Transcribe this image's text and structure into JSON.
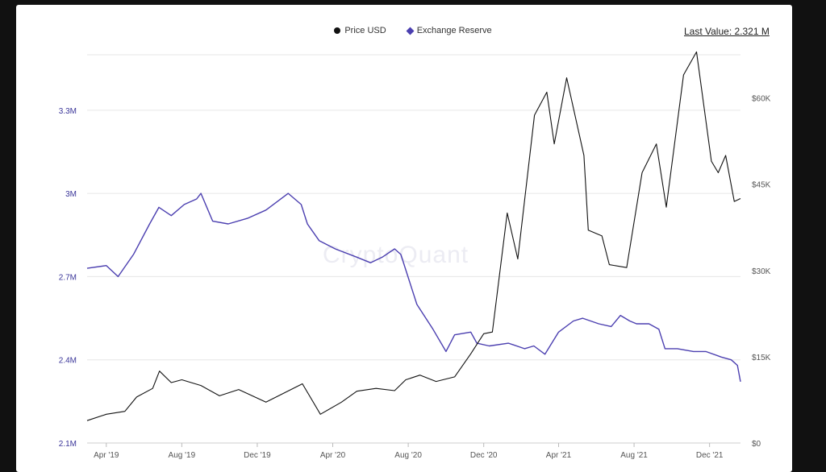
{
  "legend": {
    "price_label": "Price USD",
    "reserve_label": "Exchange Reserve"
  },
  "last_value": "Last Value: 2.321 M",
  "watermark": "CryptoQuant",
  "colors": {
    "price": "#111111",
    "reserve": "#4b3fb0",
    "left_axis_text": "#3a3599",
    "right_axis_text": "#555555",
    "grid": "#e6e6e6"
  },
  "chart_data": {
    "type": "line",
    "title": "",
    "x_tick_labels": [
      "Apr '19",
      "Aug '19",
      "Dec '19",
      "Apr '20",
      "Aug '20",
      "Dec '20",
      "Apr '21",
      "Aug '21",
      "Dec '21"
    ],
    "x_tick_dates": [
      "2019-04-01",
      "2019-08-01",
      "2019-12-01",
      "2020-04-01",
      "2020-08-01",
      "2020-12-01",
      "2021-04-01",
      "2021-08-01",
      "2021-12-01"
    ],
    "x_range": [
      "2019-03-01",
      "2022-01-20"
    ],
    "y_left": {
      "range": [
        2100000,
        3500000
      ],
      "ticks": [
        2100000,
        2400000,
        2700000,
        3000000,
        3300000
      ],
      "tick_labels": [
        "2.1M",
        "2.4M",
        "2.7M",
        "3M",
        "3.3M"
      ]
    },
    "y_right": {
      "range": [
        0,
        67500
      ],
      "ticks": [
        0,
        15000,
        30000,
        45000,
        60000
      ],
      "tick_labels": [
        "$0",
        "$15K",
        "$30K",
        "$45K",
        "$60K"
      ]
    },
    "grid": true,
    "legend_position": "top-center",
    "series": [
      {
        "name": "Exchange Reserve",
        "axis": "left",
        "x": [
          "2019-03-01",
          "2019-04-01",
          "2019-04-20",
          "2019-05-15",
          "2019-06-10",
          "2019-06-25",
          "2019-07-15",
          "2019-08-05",
          "2019-08-25",
          "2019-09-01",
          "2019-09-20",
          "2019-10-15",
          "2019-11-15",
          "2019-12-15",
          "2020-01-20",
          "2020-02-10",
          "2020-02-20",
          "2020-03-10",
          "2020-04-05",
          "2020-05-10",
          "2020-06-01",
          "2020-06-20",
          "2020-07-10",
          "2020-07-20",
          "2020-08-15",
          "2020-09-10",
          "2020-10-01",
          "2020-10-15",
          "2020-11-10",
          "2020-11-20",
          "2020-12-10",
          "2021-01-10",
          "2021-02-05",
          "2021-02-20",
          "2021-03-10",
          "2021-04-01",
          "2021-04-25",
          "2021-05-10",
          "2021-06-05",
          "2021-06-25",
          "2021-07-10",
          "2021-07-25",
          "2021-08-05",
          "2021-08-25",
          "2021-09-10",
          "2021-09-20",
          "2021-10-10",
          "2021-11-05",
          "2021-11-25",
          "2021-12-20",
          "2022-01-05",
          "2022-01-15",
          "2022-01-20"
        ],
        "values": [
          2730000,
          2740000,
          2700000,
          2780000,
          2890000,
          2950000,
          2920000,
          2960000,
          2980000,
          3000000,
          2900000,
          2890000,
          2910000,
          2940000,
          3000000,
          2960000,
          2890000,
          2830000,
          2800000,
          2770000,
          2750000,
          2770000,
          2800000,
          2780000,
          2600000,
          2510000,
          2430000,
          2490000,
          2500000,
          2460000,
          2450000,
          2460000,
          2440000,
          2450000,
          2420000,
          2500000,
          2540000,
          2550000,
          2530000,
          2520000,
          2560000,
          2540000,
          2530000,
          2530000,
          2510000,
          2440000,
          2440000,
          2430000,
          2430000,
          2410000,
          2400000,
          2380000,
          2321000
        ]
      },
      {
        "name": "Price USD",
        "axis": "right",
        "x": [
          "2019-03-01",
          "2019-04-01",
          "2019-05-01",
          "2019-05-20",
          "2019-06-15",
          "2019-06-26",
          "2019-07-15",
          "2019-08-01",
          "2019-09-01",
          "2019-10-01",
          "2019-11-01",
          "2019-12-15",
          "2020-02-12",
          "2020-03-12",
          "2020-04-15",
          "2020-05-10",
          "2020-06-10",
          "2020-07-10",
          "2020-07-28",
          "2020-08-20",
          "2020-09-15",
          "2020-10-15",
          "2020-11-10",
          "2020-12-01",
          "2020-12-15",
          "2021-01-08",
          "2021-01-25",
          "2021-02-21",
          "2021-03-13",
          "2021-03-25",
          "2021-04-14",
          "2021-05-12",
          "2021-05-19",
          "2021-06-10",
          "2021-06-22",
          "2021-07-20",
          "2021-08-14",
          "2021-09-06",
          "2021-09-22",
          "2021-10-20",
          "2021-11-10",
          "2021-12-04",
          "2021-12-15",
          "2021-12-27",
          "2022-01-10",
          "2022-01-20"
        ],
        "values": [
          3900,
          5000,
          5500,
          8000,
          9500,
          12500,
          10500,
          11000,
          10000,
          8200,
          9300,
          7100,
          10300,
          5000,
          7100,
          9000,
          9500,
          9100,
          11000,
          11800,
          10700,
          11500,
          15500,
          19000,
          19300,
          40000,
          32000,
          57000,
          61000,
          52000,
          63500,
          50000,
          37000,
          36000,
          31000,
          30500,
          47000,
          52000,
          41000,
          64000,
          68000,
          49000,
          47000,
          50000,
          42000,
          42500
        ]
      }
    ]
  }
}
